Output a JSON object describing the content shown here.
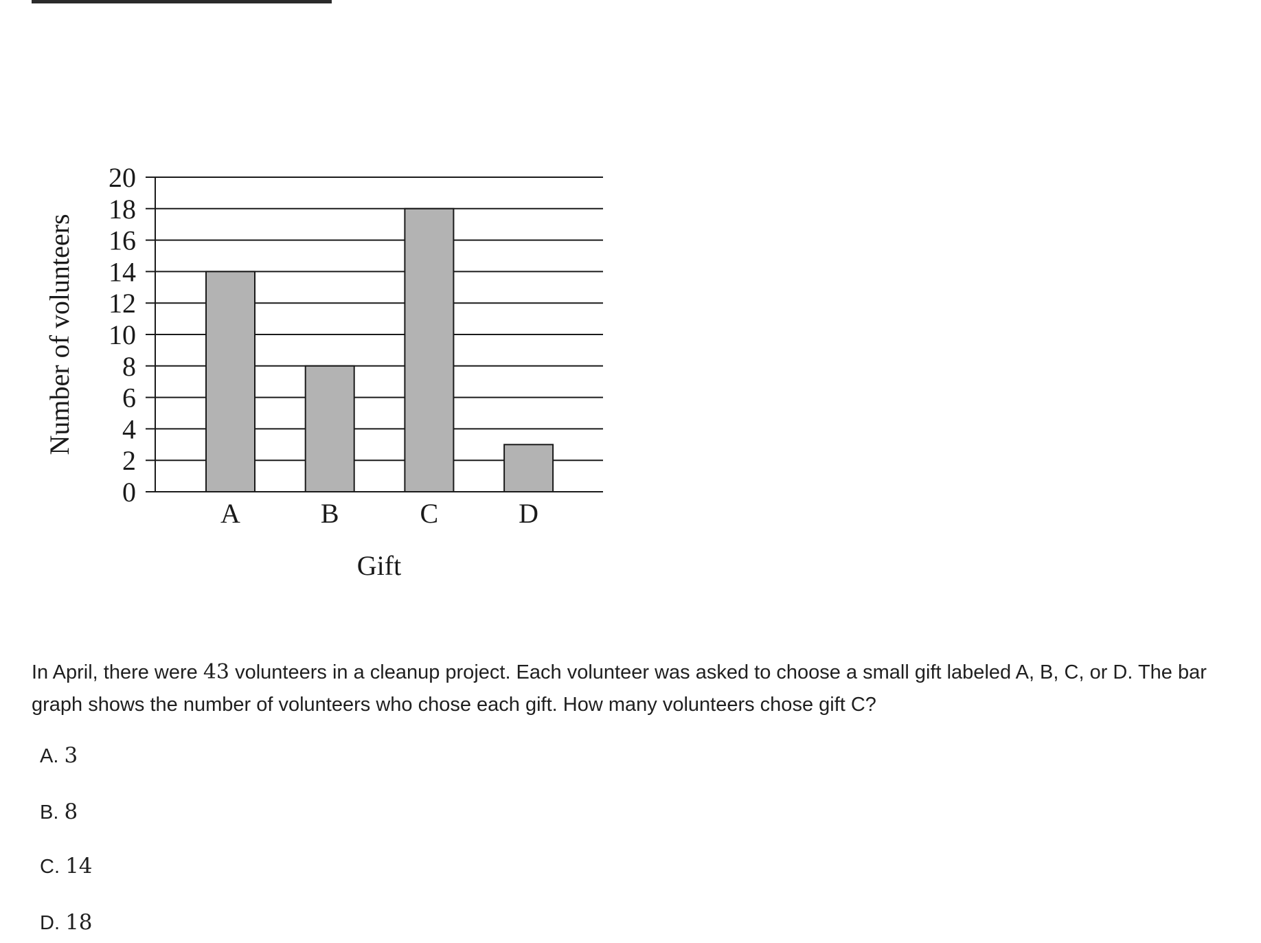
{
  "question": {
    "part1": "In April, there were ",
    "number": "43",
    "part2": " volunteers in a cleanup project. Each volunteer was asked to choose a small gift labeled A, B, C, or D. The bar graph shows the number of volunteers who chose each gift. How many volunteers chose gift C?"
  },
  "options": [
    {
      "letter": "A.",
      "value": "3"
    },
    {
      "letter": "B.",
      "value": "8"
    },
    {
      "letter": "C.",
      "value": "14"
    },
    {
      "letter": "D.",
      "value": "18"
    }
  ],
  "chart_data": {
    "type": "bar",
    "categories": [
      "A",
      "B",
      "C",
      "D"
    ],
    "values": [
      14,
      8,
      18,
      3
    ],
    "xlabel": "Gift",
    "ylabel": "Number of volunteers",
    "ylim": [
      0,
      20
    ],
    "yticks": [
      0,
      2,
      4,
      6,
      8,
      10,
      12,
      14,
      16,
      18,
      20
    ],
    "grid": true,
    "bar_color": "#b3b3b3"
  }
}
